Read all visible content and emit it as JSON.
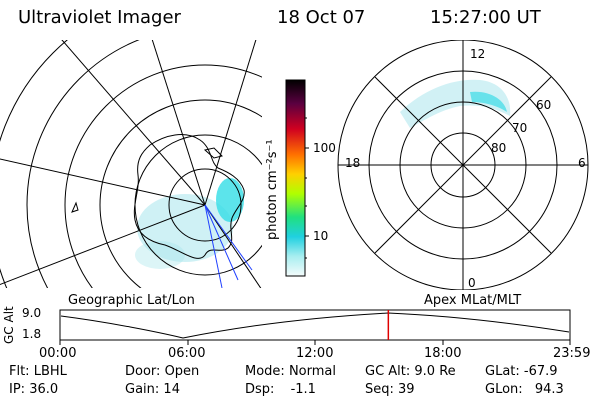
{
  "header": {
    "title": "Ultraviolet Imager",
    "date": "18 Oct 07",
    "time": "15:27:00 UT"
  },
  "left_panel": {
    "caption": "Geographic Lat/Lon"
  },
  "right_panel": {
    "caption": "Apex  MLat/MLT",
    "mlt_labels": [
      "12",
      "18",
      "6",
      "0"
    ],
    "lat_labels": [
      "60",
      "70",
      "80"
    ]
  },
  "colorbar": {
    "unit_label": "photon cm⁻²s⁻¹",
    "ticks": [
      "100",
      "10"
    ]
  },
  "timeline": {
    "axis_label": "GC Alt",
    "y_ticks": [
      "9.0",
      "1.8"
    ],
    "x_ticks": [
      "00:00",
      "06:00",
      "12:00",
      "18:00",
      "23:59"
    ],
    "current_time_fraction": 0.6438
  },
  "status": {
    "flt_label": "Flt:",
    "flt": "LBHL",
    "door_label": "Door:",
    "door": "Open",
    "mode_label": "Mode:",
    "mode": "Normal",
    "gcalt_label": "GC Alt:",
    "gcalt": "9.0 Re",
    "glat_label": "GLat:",
    "glat": "-67.9",
    "ip_label": "IP:",
    "ip": "36.0",
    "gain_label": "Gain:",
    "gain": "14",
    "dsp_label": "Dsp:",
    "dsp": "-1.1",
    "seq_label": "Seq:",
    "seq": "39",
    "glon_label": "GLon:",
    "glon": "94.3"
  },
  "colors": {
    "marker": "#e00000",
    "aurora": "#9fe3ea",
    "aurora_bright": "#2ce0e8"
  }
}
